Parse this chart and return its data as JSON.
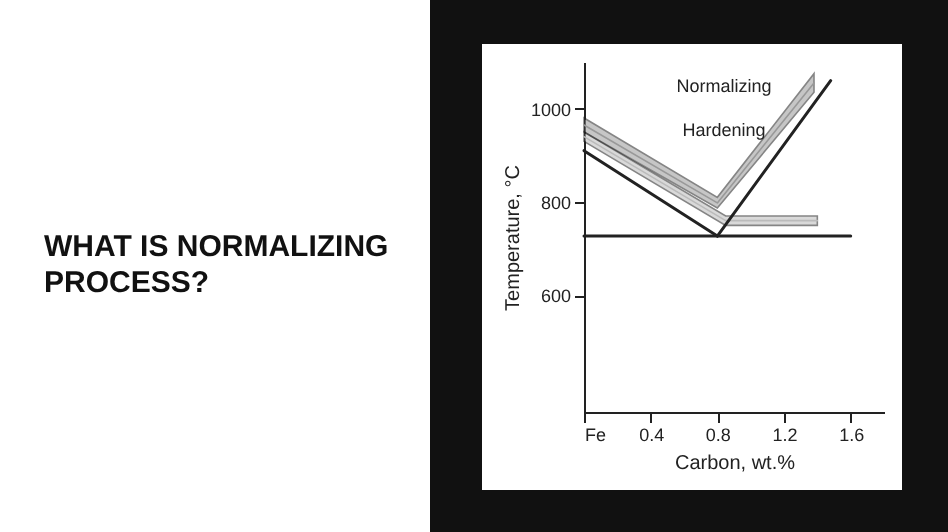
{
  "chart_data": {
    "type": "line",
    "title": "WHAT IS NORMALIZING PROCESS?",
    "xlabel": "Carbon, wt.%",
    "ylabel": "Temperature, °C",
    "series": [
      {
        "color": "#999999",
        "x": [
          0,
          0.8,
          1.38
        ],
        "values": [
          965,
          798,
          1055
        ],
        "lower": [
          950,
          787,
          1035
        ],
        "upper": [
          980,
          810,
          1075
        ]
      },
      {
        "color": "#bbbbbb",
        "x": [
          0,
          0.85,
          1.4
        ],
        "values": [
          940,
          760,
          760
        ],
        "lower": [
          930,
          750,
          750
        ],
        "upper": [
          950,
          770,
          770
        ]
      },
      {
        "color": "#222222",
        "x": [
          0,
          0.8
        ],
        "values": [
          910,
          727
        ]
      },
      {
        "color": "#222222",
        "x": [
          0,
          1.6
        ],
        "values": [
          727,
          727
        ]
      },
      {
        "color": "#222222",
        "x": [
          0.8,
          1.48
        ],
        "values": [
          727,
          1060
        ]
      }
    ],
    "xlim": [
      0,
      1.8
    ],
    "ylim": [
      350,
      1100
    ],
    "xticks": [
      {
        "value": 0,
        "label": "Fe"
      },
      0.4,
      0.8,
      1.2,
      1.6
    ],
    "yticks": [
      600,
      800,
      1000
    ],
    "annotations": [
      "Normalizing",
      "Hardening"
    ],
    "grid": false,
    "marker": "none",
    "line_style": "solid"
  }
}
